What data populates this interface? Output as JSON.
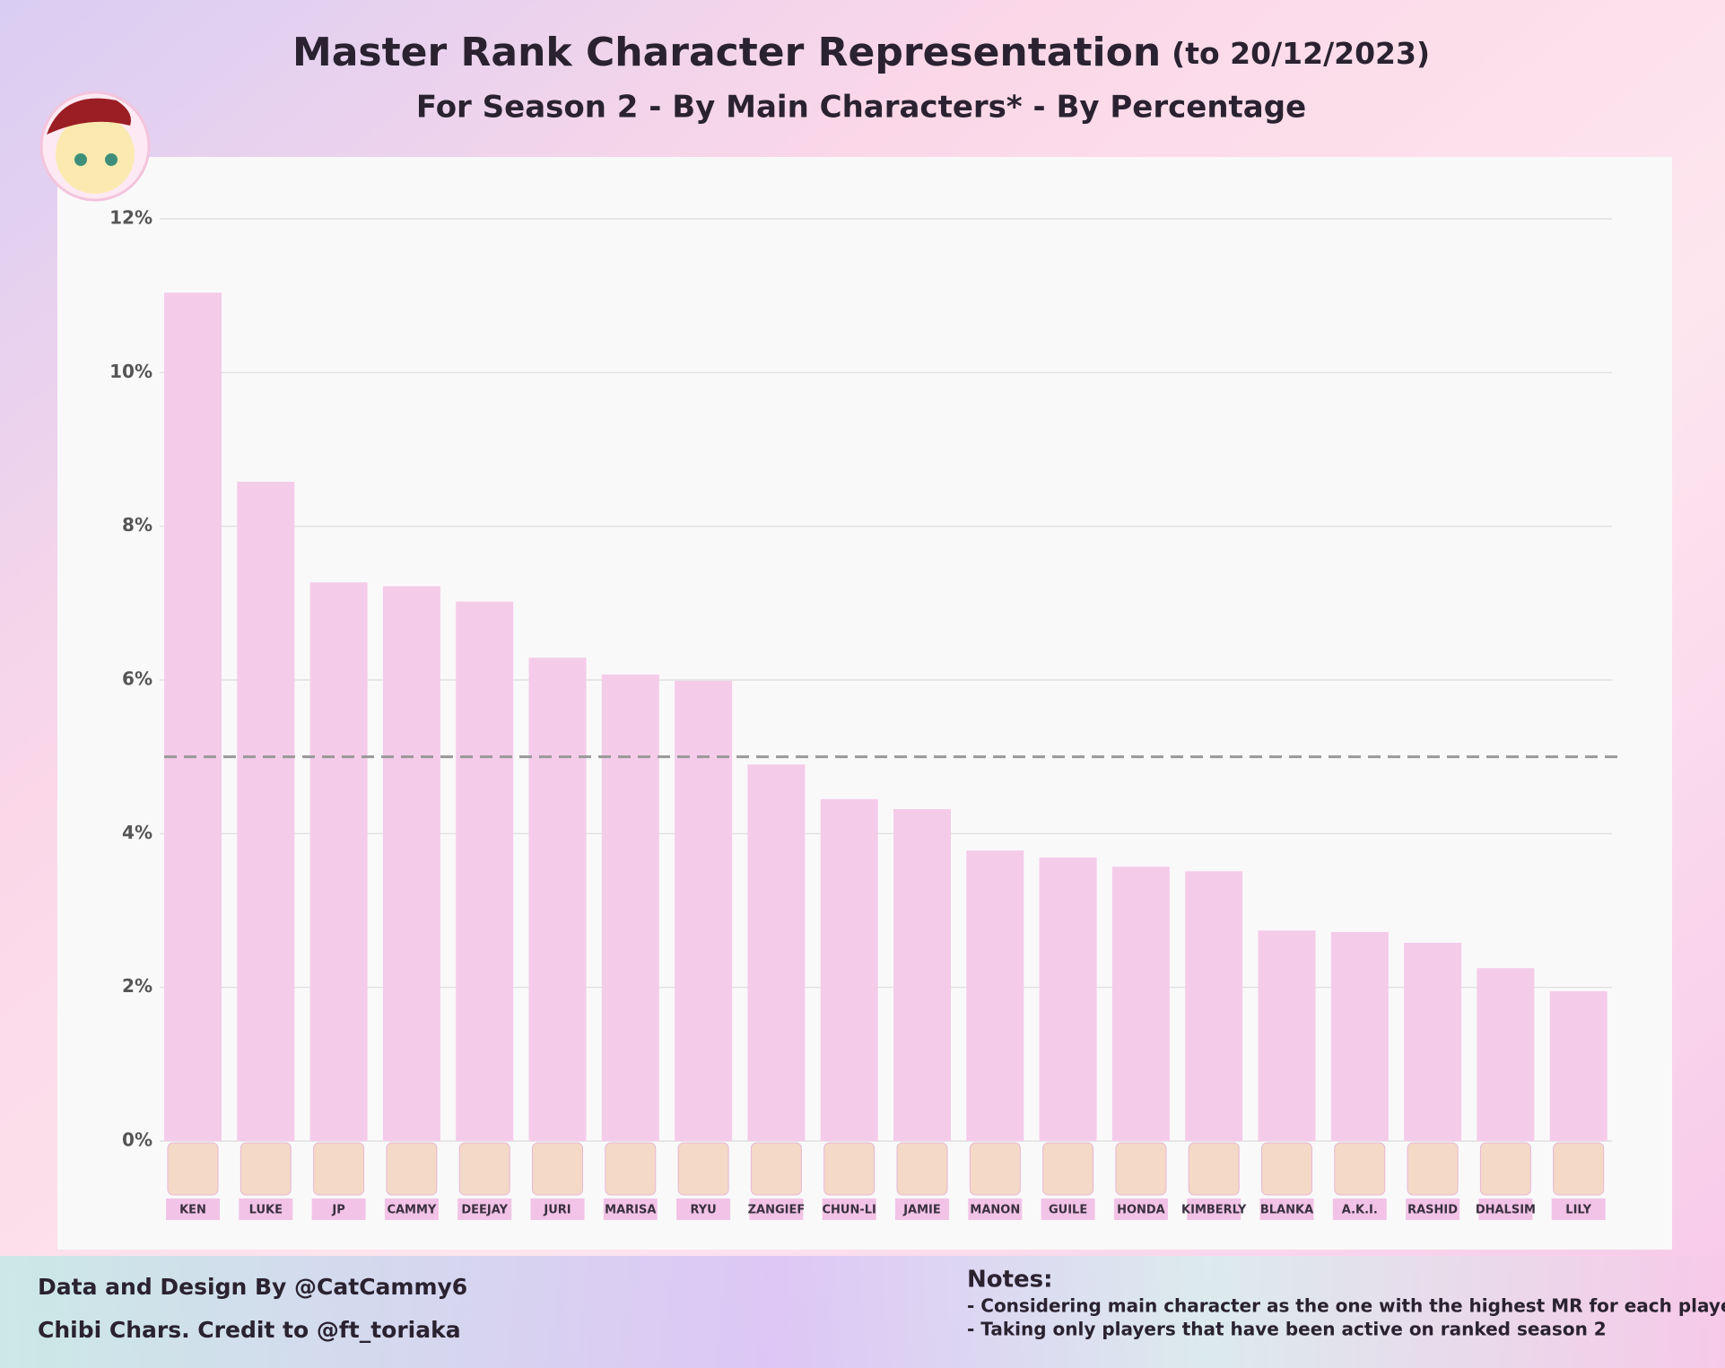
{
  "chart_data": {
    "type": "bar",
    "title": "Master Rank Character Representation",
    "title_note": "(to 20/12/2023)",
    "subtitle": "For Season 2 - By Main Characters* - By Percentage",
    "categories": [
      "KEN",
      "LUKE",
      "JP",
      "CAMMY",
      "DEEJAY",
      "JURI",
      "MARISA",
      "RYU",
      "ZANGIEF",
      "CHUN-LI",
      "JAMIE",
      "MANON",
      "GUILE",
      "HONDA",
      "KIMBERLY",
      "BLANKA",
      "A.K.I.",
      "RASHID",
      "DHALSIM",
      "LILY"
    ],
    "values": [
      11.04,
      8.58,
      7.27,
      7.22,
      7.02,
      6.29,
      6.07,
      5.99,
      4.9,
      4.45,
      4.32,
      3.78,
      3.69,
      3.57,
      3.51,
      2.74,
      2.72,
      2.58,
      2.25,
      1.95
    ],
    "color": "#f5cbea",
    "ylim": [
      0,
      12
    ],
    "yticks": [
      {
        "value": 0,
        "label": "0%"
      },
      {
        "value": 2,
        "label": "2%"
      },
      {
        "value": 4,
        "label": "4%"
      },
      {
        "value": 6,
        "label": "6%"
      },
      {
        "value": 8,
        "label": "8%"
      },
      {
        "value": 10,
        "label": "10%"
      },
      {
        "value": 12,
        "label": "12%"
      }
    ],
    "grid": true,
    "reference_line": 5,
    "credits": [
      "Data and Design By @CatCammy6",
      "Chibi Chars. Credit to @ft_toriaka"
    ],
    "notes_title": "Notes:",
    "notes": [
      "- Considering main character as the one with the highest MR for each player",
      "- Taking only players that have been active on ranked season 2"
    ]
  }
}
